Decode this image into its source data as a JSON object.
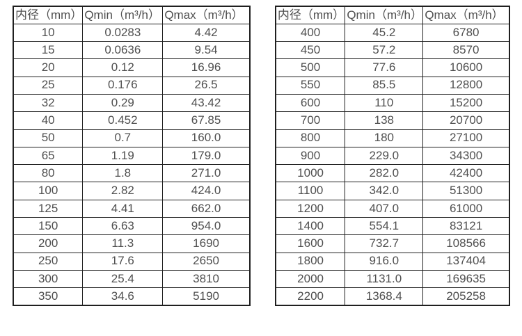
{
  "colors": {
    "background": "#ffffff",
    "border": "#1f1f1f",
    "text": "#4f4f4f"
  },
  "chart_data": [
    {
      "type": "table",
      "name": "flow-rate-table-small-diameters",
      "columns": [
        "内径（mm）",
        "Qmin（m³/h）",
        "Qmax（m³/h）"
      ],
      "rows": [
        [
          "10",
          "0.0283",
          "4.42"
        ],
        [
          "15",
          "0.0636",
          "9.54"
        ],
        [
          "20",
          "0.12",
          "16.96"
        ],
        [
          "25",
          "0.176",
          "26.5"
        ],
        [
          "32",
          "0.29",
          "43.42"
        ],
        [
          "40",
          "0.452",
          "67.85"
        ],
        [
          "50",
          "0.7",
          "160.0"
        ],
        [
          "65",
          "1.19",
          "179.0"
        ],
        [
          "80",
          "1.8",
          "271.0"
        ],
        [
          "100",
          "2.82",
          "424.0"
        ],
        [
          "125",
          "4.41",
          "662.0"
        ],
        [
          "150",
          "6.63",
          "954.0"
        ],
        [
          "200",
          "11.3",
          "1690"
        ],
        [
          "250",
          "17.6",
          "2650"
        ],
        [
          "300",
          "25.4",
          "3810"
        ],
        [
          "350",
          "34.6",
          "5190"
        ]
      ]
    },
    {
      "type": "table",
      "name": "flow-rate-table-large-diameters",
      "columns": [
        "内径（mm）",
        "Qmin（m³/h）",
        "Qmax（m³/h）"
      ],
      "rows": [
        [
          "400",
          "45.2",
          "6780"
        ],
        [
          "450",
          "57.2",
          "8570"
        ],
        [
          "500",
          "77.6",
          "10600"
        ],
        [
          "550",
          "85.5",
          "12800"
        ],
        [
          "600",
          "110",
          "15200"
        ],
        [
          "700",
          "138",
          "20700"
        ],
        [
          "800",
          "180",
          "27100"
        ],
        [
          "900",
          "229.0",
          "34300"
        ],
        [
          "1000",
          "282.0",
          "42400"
        ],
        [
          "1100",
          "342.0",
          "51300"
        ],
        [
          "1200",
          "407.0",
          "61000"
        ],
        [
          "1400",
          "554.1",
          "83121"
        ],
        [
          "1600",
          "732.7",
          "108566"
        ],
        [
          "1800",
          "916.0",
          "137404"
        ],
        [
          "2000",
          "1131.0",
          "169635"
        ],
        [
          "2200",
          "1368.4",
          "205258"
        ]
      ]
    }
  ]
}
